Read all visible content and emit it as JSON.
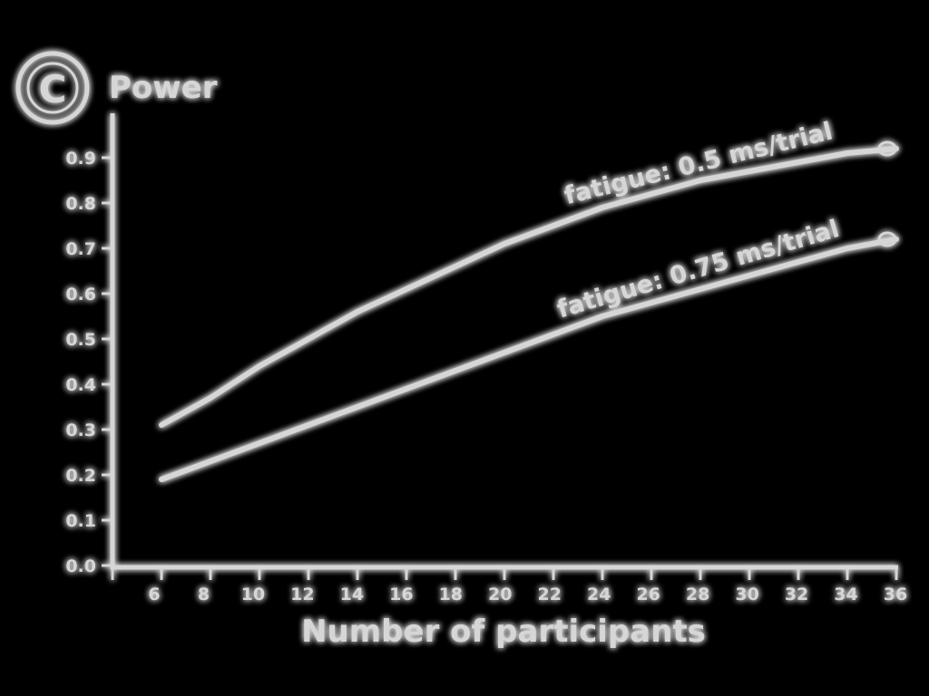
{
  "colors": {
    "background": "#000000",
    "foreground": "#d6d6d6"
  },
  "badge": {
    "letter": "C",
    "icon": "circle-c-badge-icon"
  },
  "chart_data": {
    "type": "line",
    "title": "",
    "xlabel": "Number of participants",
    "ylabel": "Power",
    "xlim": [
      4,
      36
    ],
    "ylim": [
      0,
      1.0
    ],
    "x_ticks": [
      4,
      6,
      8,
      10,
      12,
      14,
      16,
      18,
      20,
      22,
      24,
      26,
      28,
      30,
      32,
      34,
      36
    ],
    "x_tick_labels": [
      "6",
      "8",
      "10",
      "12",
      "14",
      "16",
      "18",
      "20",
      "22",
      "24",
      "26",
      "28",
      "30",
      "32",
      "34",
      "36"
    ],
    "y_ticks": [
      0,
      0.1,
      0.2,
      0.3,
      0.4,
      0.5,
      0.6,
      0.7,
      0.8,
      0.9
    ],
    "y_tick_labels": [
      "0.0",
      "0.1",
      "0.2",
      "0.3",
      "0.4",
      "0.5",
      "0.6",
      "0.7",
      "0.8",
      "0.9"
    ],
    "grid": false,
    "legend": "inline labels",
    "series": [
      {
        "name": "fatigue: 0.5 ms/trial",
        "x": [
          6,
          8,
          10,
          12,
          14,
          16,
          18,
          20,
          22,
          24,
          26,
          28,
          30,
          32,
          34,
          36
        ],
        "values": [
          0.31,
          0.37,
          0.44,
          0.5,
          0.56,
          0.61,
          0.66,
          0.71,
          0.75,
          0.79,
          0.82,
          0.85,
          0.87,
          0.89,
          0.91,
          0.92
        ]
      },
      {
        "name": "fatigue: 0.75 ms/trial",
        "x": [
          6,
          8,
          10,
          12,
          14,
          16,
          18,
          20,
          22,
          24,
          26,
          28,
          30,
          32,
          34,
          36
        ],
        "values": [
          0.19,
          0.23,
          0.27,
          0.31,
          0.35,
          0.39,
          0.43,
          0.47,
          0.51,
          0.55,
          0.58,
          0.61,
          0.64,
          0.67,
          0.7,
          0.72
        ]
      }
    ]
  }
}
